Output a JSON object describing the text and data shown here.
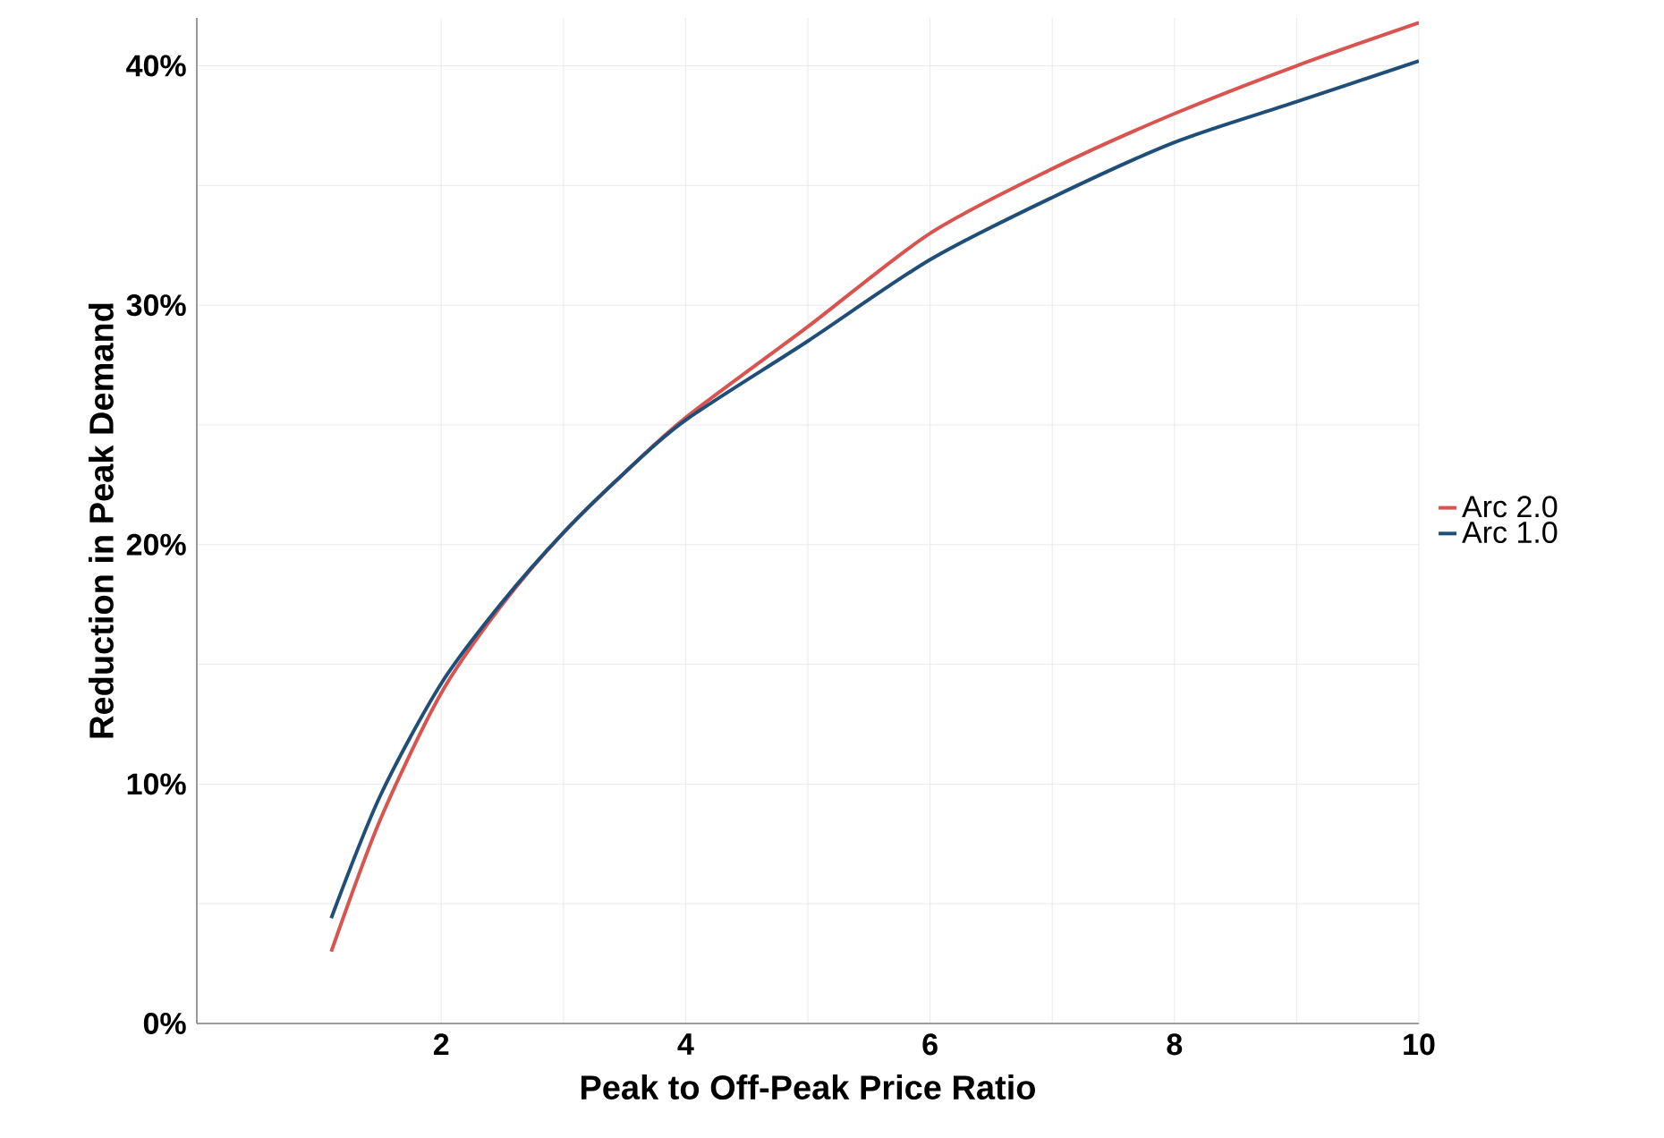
{
  "chart_data": {
    "type": "line",
    "xlabel": "Peak to Off-Peak Price Ratio",
    "ylabel": "Reduction in Peak Demand",
    "x": [
      1.1,
      1.5,
      2,
      2.5,
      3,
      3.5,
      4,
      5,
      6,
      7,
      8,
      9,
      10
    ],
    "series": [
      {
        "name": "Arc 2.0",
        "color": "#d9534f",
        "values": [
          3.0,
          8.5,
          13.8,
          17.5,
          20.5,
          23.0,
          25.3,
          29.1,
          33.0,
          35.7,
          38.0,
          40.0,
          41.8
        ]
      },
      {
        "name": "Arc 1.0",
        "color": "#1f4e79",
        "values": [
          4.4,
          9.5,
          14.2,
          17.6,
          20.5,
          23.0,
          25.2,
          28.5,
          31.9,
          34.5,
          36.8,
          38.5,
          40.2
        ]
      }
    ],
    "xlim": [
      0,
      10
    ],
    "xticks": [
      2,
      4,
      6,
      8,
      10
    ],
    "ylim": [
      0,
      42
    ],
    "yticks": [
      {
        "value": 0,
        "label": "0%"
      },
      {
        "value": 10,
        "label": "10%"
      },
      {
        "value": 20,
        "label": "20%"
      },
      {
        "value": 30,
        "label": "30%"
      },
      {
        "value": 40,
        "label": "40%"
      }
    ],
    "grid": true,
    "legend": "right",
    "marker": "none",
    "line_style": "solid"
  }
}
